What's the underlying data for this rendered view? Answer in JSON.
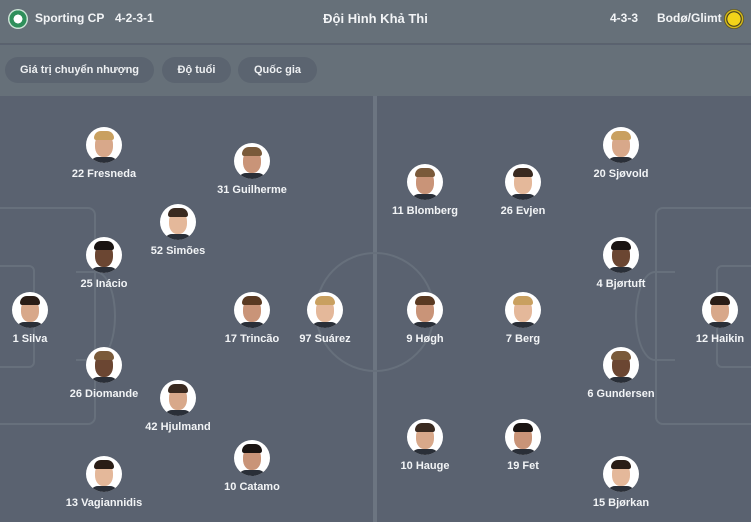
{
  "header": {
    "home_team": "Sporting CP",
    "home_formation": "4-2-3-1",
    "title": "Đội Hình Khả Thi",
    "away_formation": "4-3-3",
    "away_team": "Bodø/Glimt",
    "home_logo_icon": "sporting-crest-icon",
    "away_logo_icon": "bodo-glimt-crest-icon"
  },
  "filters": [
    {
      "label": "Giá trị chuyển nhượng"
    },
    {
      "label": "Độ tuổi"
    },
    {
      "label": "Quốc gia"
    }
  ],
  "home_players": [
    {
      "label": "22 Fresneda"
    },
    {
      "label": "31 Guilherme"
    },
    {
      "label": "52 Simões"
    },
    {
      "label": "25 Inácio"
    },
    {
      "label": "1 Silva"
    },
    {
      "label": "17 Trincão"
    },
    {
      "label": "97 Suárez"
    },
    {
      "label": "26 Diomande"
    },
    {
      "label": "42 Hjulmand"
    },
    {
      "label": "10 Catamo"
    },
    {
      "label": "13 Vagiannidis"
    }
  ],
  "away_players": [
    {
      "label": "20 Sjøvold"
    },
    {
      "label": "11 Blomberg"
    },
    {
      "label": "26 Evjen"
    },
    {
      "label": "4 Bjørtuft"
    },
    {
      "label": "12 Haikin"
    },
    {
      "label": "9 Høgh"
    },
    {
      "label": "7 Berg"
    },
    {
      "label": "6 Gundersen"
    },
    {
      "label": "10 Hauge"
    },
    {
      "label": "19 Fet"
    },
    {
      "label": "15 Bjørkan"
    }
  ]
}
